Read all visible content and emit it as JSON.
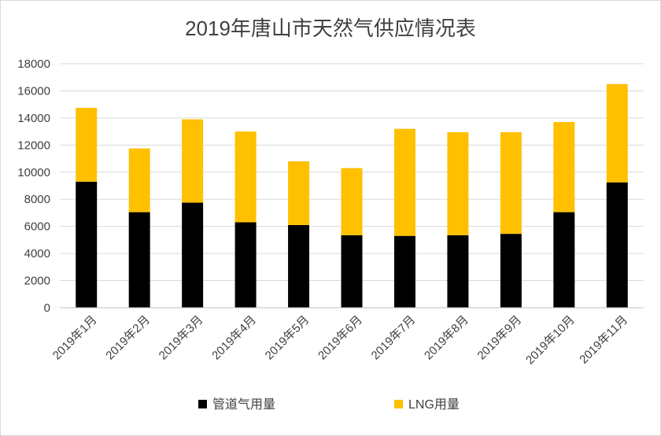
{
  "chart_data": {
    "type": "bar",
    "stacked": true,
    "title": "2019年唐山市天然气供应情况表",
    "xlabel": "",
    "ylabel": "",
    "ylim": [
      0,
      18000
    ],
    "yticks": [
      0,
      2000,
      4000,
      6000,
      8000,
      10000,
      12000,
      14000,
      16000,
      18000
    ],
    "grid": true,
    "legend_position": "bottom",
    "categories": [
      "2019年1月",
      "2019年2月",
      "2019年3月",
      "2019年4月",
      "2019年5月",
      "2019年6月",
      "2019年7月",
      "2019年8月",
      "2019年9月",
      "2019年10月",
      "2019年11月"
    ],
    "series": [
      {
        "name": "管道气用量",
        "color": "#000000",
        "values": [
          9300,
          7050,
          7750,
          6300,
          6100,
          5350,
          5300,
          5350,
          5450,
          7050,
          9250
        ]
      },
      {
        "name": "LNG用量",
        "color": "#FFC000",
        "values": [
          5450,
          4700,
          6150,
          6700,
          4700,
          4950,
          7900,
          7600,
          7500,
          6650,
          7250
        ]
      }
    ]
  }
}
